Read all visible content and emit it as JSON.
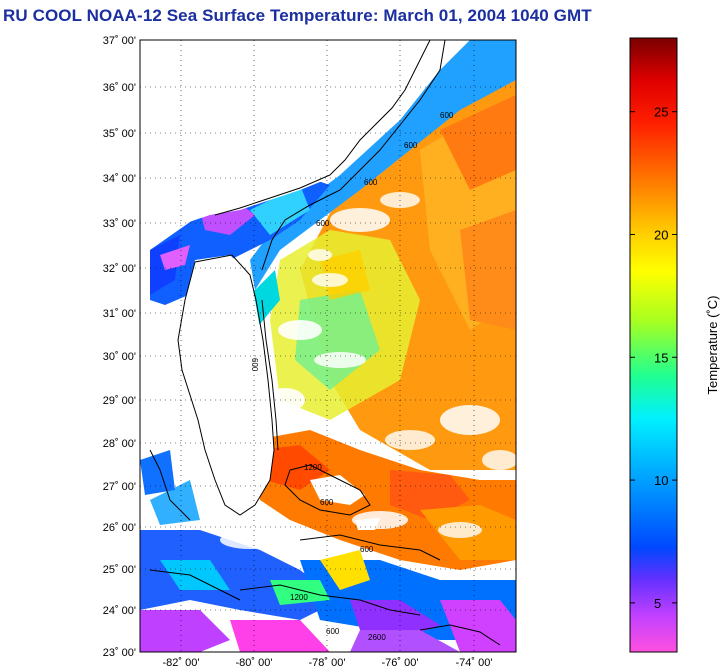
{
  "title": "RU COOL  NOAA-12  Sea Surface Temperature:  March 01, 2004 1040 GMT",
  "map": {
    "lat_labels": [
      "37˚ 00'",
      "36˚ 00'",
      "35˚ 00'",
      "34˚ 00'",
      "33˚ 00'",
      "32˚ 00'",
      "31˚ 00'",
      "30˚ 00'",
      "29˚ 00'",
      "28˚ 00'",
      "27˚ 00'",
      "26˚ 00'",
      "25˚ 00'",
      "24˚ 00'",
      "23˚ 00'"
    ],
    "lon_labels": [
      "-82˚ 00'",
      "-80˚ 00'",
      "-78˚ 00'",
      "-76˚ 00'",
      "-74˚ 00'"
    ],
    "contour_labels": [
      "600",
      "600",
      "600",
      "600",
      "1200",
      "600",
      "600",
      "1200",
      "600",
      "600",
      "2600"
    ]
  },
  "colorbar": {
    "label": "Temperature (˚C)",
    "ticks": [
      "25",
      "20",
      "15",
      "10",
      "5"
    ],
    "tick_values": [
      25,
      20,
      15,
      10,
      5
    ],
    "min": 3,
    "max": 28,
    "colors": [
      "#ff40e8",
      "#b040ff",
      "#5a2cff",
      "#0058ff",
      "#00a8ff",
      "#00e8d8",
      "#30ff70",
      "#c8ff00",
      "#ffff00",
      "#ffc000",
      "#ff8000",
      "#ff3000",
      "#e00000",
      "#7a0000"
    ]
  }
}
